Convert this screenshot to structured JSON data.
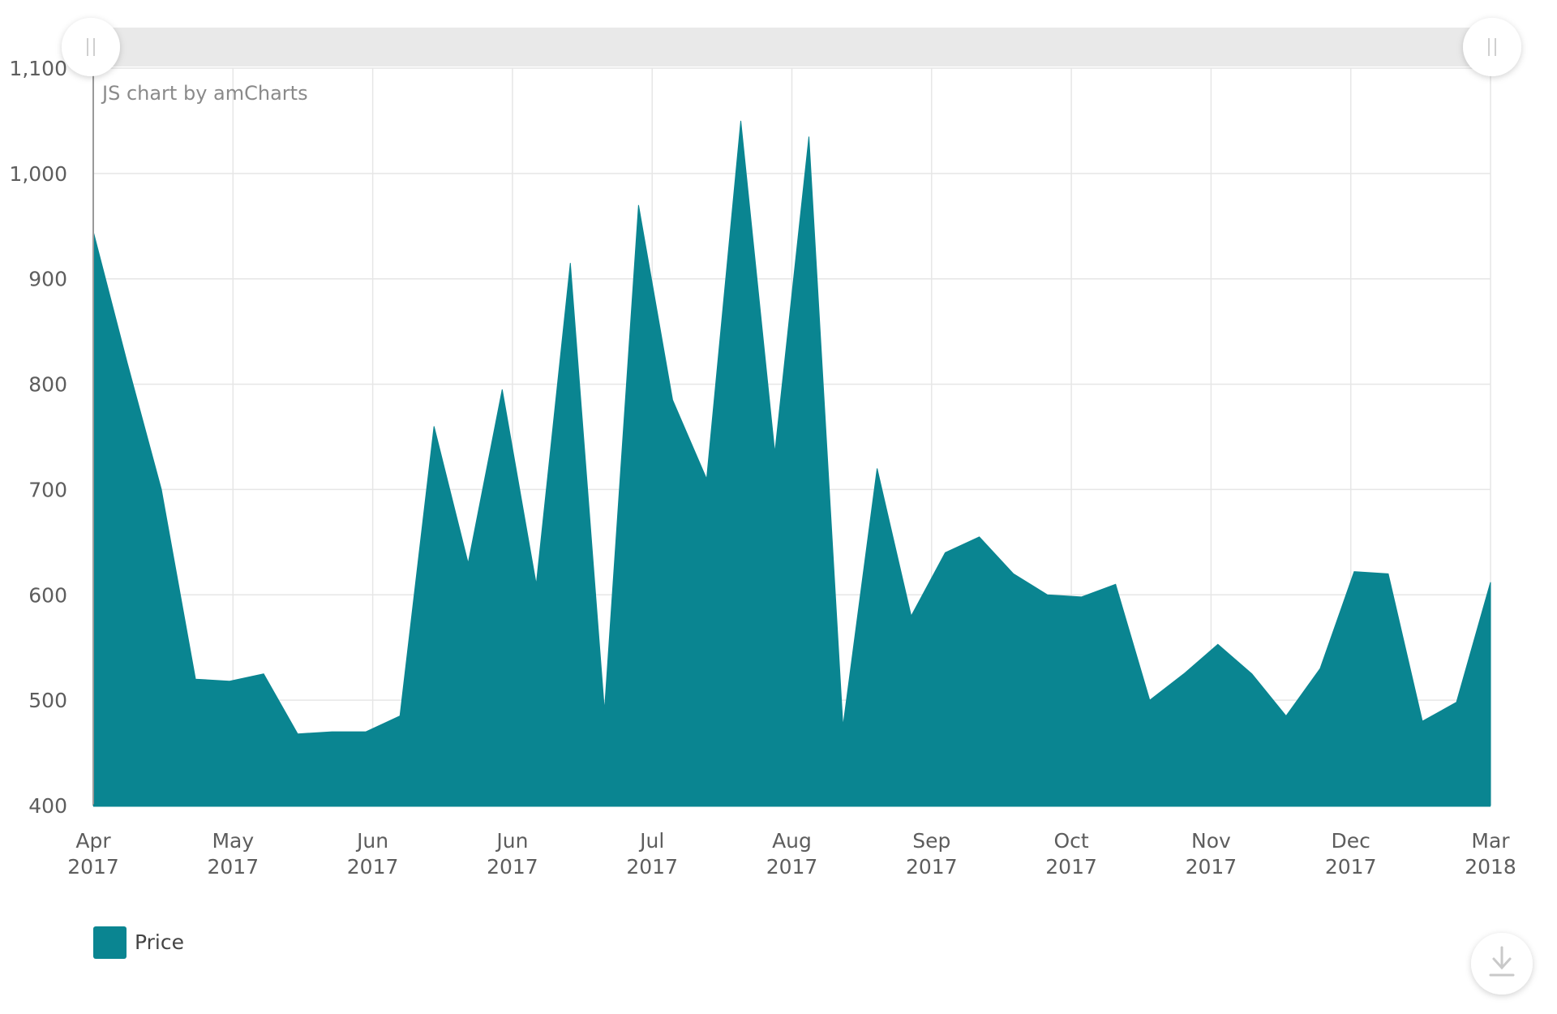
{
  "credit": "JS chart by amCharts",
  "chart_data": {
    "type": "area",
    "title": "",
    "xlabel": "",
    "ylabel": "",
    "ylim": [
      400,
      1100
    ],
    "y_ticks": [
      "400",
      "500",
      "600",
      "700",
      "800",
      "900",
      "1,000",
      "1,100"
    ],
    "x_ticks": [
      {
        "month": "Apr",
        "year": "2017"
      },
      {
        "month": "May",
        "year": "2017"
      },
      {
        "month": "Jun",
        "year": "2017"
      },
      {
        "month": "Jun",
        "year": "2017"
      },
      {
        "month": "Jul",
        "year": "2017"
      },
      {
        "month": "Aug",
        "year": "2017"
      },
      {
        "month": "Sep",
        "year": "2017"
      },
      {
        "month": "Oct",
        "year": "2017"
      },
      {
        "month": "Nov",
        "year": "2017"
      },
      {
        "month": "Dec",
        "year": "2017"
      },
      {
        "month": "Mar",
        "year": "2018"
      }
    ],
    "grid": true,
    "legend_position": "bottom-left",
    "color": "#0a8591",
    "series": [
      {
        "name": "Price",
        "values": [
          945,
          820,
          700,
          520,
          518,
          525,
          468,
          470,
          470,
          485,
          760,
          630,
          795,
          610,
          915,
          490,
          970,
          785,
          710,
          1050,
          735,
          1035,
          475,
          720,
          580,
          640,
          655,
          620,
          600,
          598,
          610,
          500,
          525,
          553,
          525,
          485,
          530,
          622,
          620,
          480,
          498,
          612
        ]
      }
    ]
  },
  "scrollbar": {
    "left_grip": "grip-icon",
    "right_grip": "grip-icon"
  },
  "download_icon": "download-icon"
}
